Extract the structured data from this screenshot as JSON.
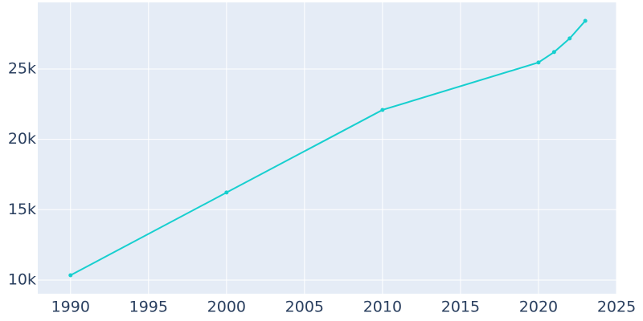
{
  "chart_data": {
    "type": "line",
    "x": [
      1990,
      2000,
      2010,
      2020,
      2021,
      2022,
      2023
    ],
    "series": [
      {
        "color": "#17cfcf",
        "values": [
          10340,
          16220,
          22090,
          25460,
          26200,
          27170,
          28420
        ]
      }
    ],
    "xlim": [
      1987.9,
      2025
    ],
    "xticks": [
      1990,
      1995,
      2000,
      2005,
      2010,
      2015,
      2020,
      2025
    ],
    "ylim": [
      9030,
      29730
    ],
    "yticks": [
      {
        "value": 10000,
        "label": "10k"
      },
      {
        "value": 15000,
        "label": "15k"
      },
      {
        "value": 20000,
        "label": "20k"
      },
      {
        "value": 25000,
        "label": "25k"
      }
    ],
    "grid": true,
    "background": "#e5ecf6"
  }
}
